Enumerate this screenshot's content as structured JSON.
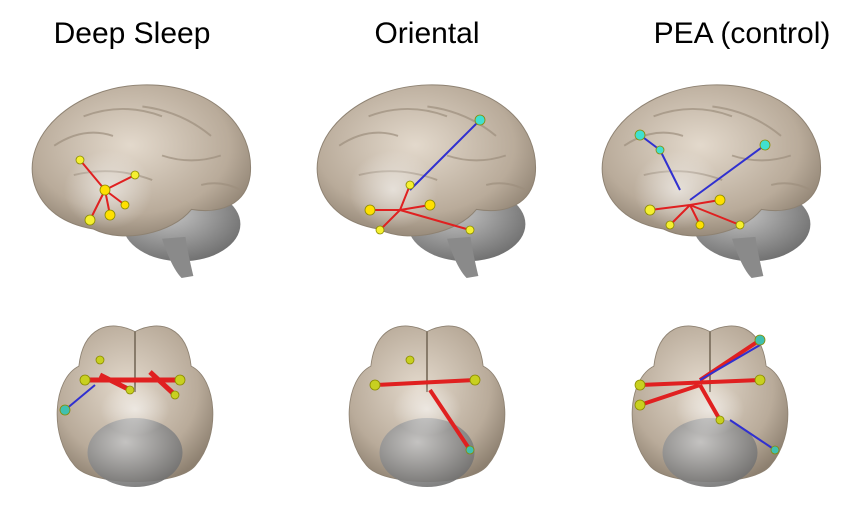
{
  "panels": [
    {
      "title": "Deep Sleep"
    },
    {
      "title": "Oriental"
    },
    {
      "title": "PEA (control)"
    }
  ]
}
